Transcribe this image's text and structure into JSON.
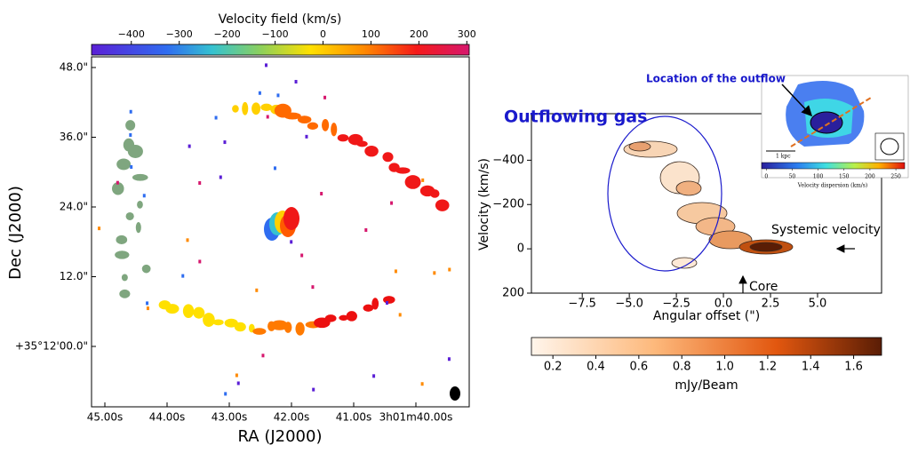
{
  "velocity_map": {
    "colorbar_label": "Velocity field (km/s)",
    "colorbar_lim": [
      -483,
      305
    ],
    "colorbar_ticks": [
      {
        "value": -400,
        "label": "−400"
      },
      {
        "value": -300,
        "label": "−300"
      },
      {
        "value": -200,
        "label": "−200"
      },
      {
        "value": -100,
        "label": "−100"
      },
      0,
      100,
      200,
      300
    ],
    "yticks": [
      "48.0\"",
      "36.0\"",
      "24.0\"",
      "12.0\"",
      "+35°12'00.0\""
    ],
    "xticks": [
      "45.00s",
      "44.00s",
      "43.00s",
      "42.00s",
      "41.00s",
      "3h01m40.00s"
    ],
    "ylabel": "Dec (J2000)",
    "xlabel": "RA (J2000)"
  },
  "pv_diagram": {
    "xlim": [
      -10.2,
      8.4
    ],
    "xticks": [
      {
        "value": -7.5,
        "label": "−7.5"
      },
      {
        "value": -5,
        "label": "−5.0"
      },
      {
        "value": -2.5,
        "label": "−2.5"
      },
      {
        "value": 0,
        "label": "0.0"
      },
      2.5,
      {
        "value": 5,
        "label": "5.0"
      }
    ],
    "ylim": [
      -610,
      200
    ],
    "yticks": [
      {
        "value": -400,
        "label": "−400"
      },
      {
        "value": -200,
        "label": "−200"
      },
      0,
      200
    ],
    "xlabel": "Angular offset (\")",
    "ylabel": "Velocity (km/s)",
    "annotations": {
      "outflow": "Outflowing gas",
      "systemic": "Systemic velocity",
      "core": "Core"
    },
    "colorbar_label": "mJy/Beam",
    "colorbar_lim": [
      0.1,
      1.73
    ],
    "colorbar_ticks": [
      0.2,
      0.4,
      0.6,
      0.8,
      {
        "value": 1,
        "label": "1.0"
      },
      1.2,
      1.4,
      1.6
    ]
  },
  "inset": {
    "callout": "Location of the outflow",
    "scale_bar": "1 kpc",
    "colorbar_label": "Velocity dispersion (km/s)",
    "colorbar_lim": [
      -9,
      267
    ],
    "colorbar_ticks": [
      0,
      50,
      100,
      150,
      200,
      250
    ]
  }
}
